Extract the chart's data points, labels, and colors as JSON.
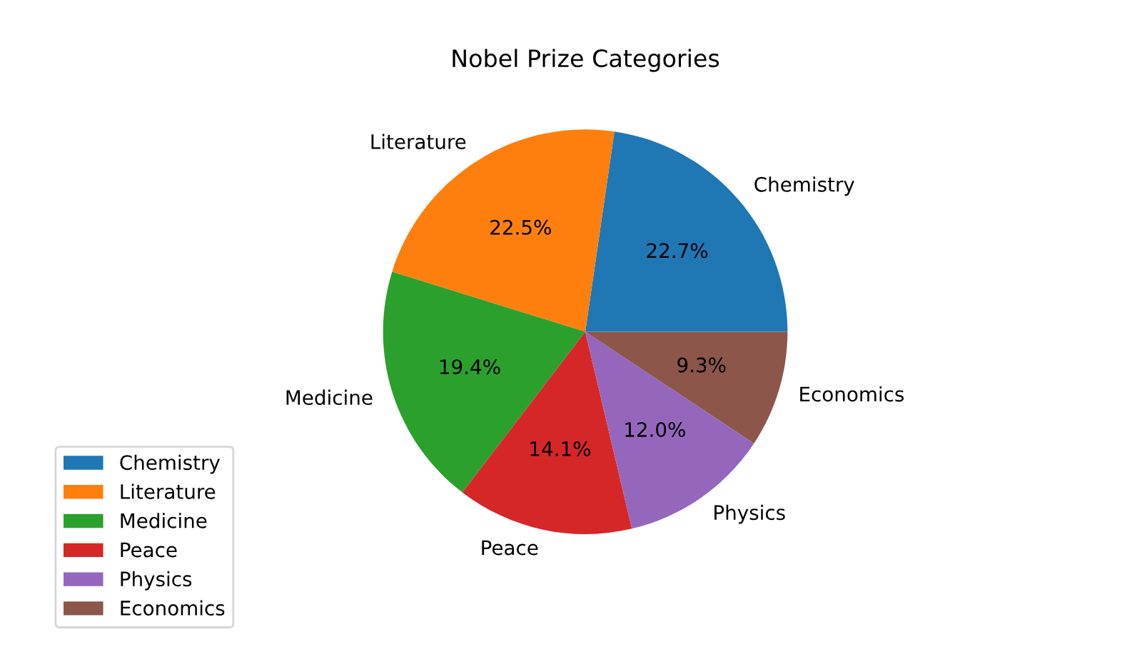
{
  "chart_data": {
    "type": "pie",
    "title": "Nobel Prize Categories",
    "categories": [
      "Chemistry",
      "Literature",
      "Medicine",
      "Peace",
      "Physics",
      "Economics"
    ],
    "values": [
      22.7,
      22.5,
      19.4,
      14.1,
      12.0,
      9.3
    ],
    "value_labels": [
      "22.7%",
      "22.5%",
      "19.4%",
      "14.1%",
      "12.0%",
      "9.3%"
    ],
    "colors": [
      "#1f77b4",
      "#ff7f0e",
      "#2ca02c",
      "#d62728",
      "#9467bd",
      "#8c564b"
    ],
    "legend": "bottom left"
  }
}
